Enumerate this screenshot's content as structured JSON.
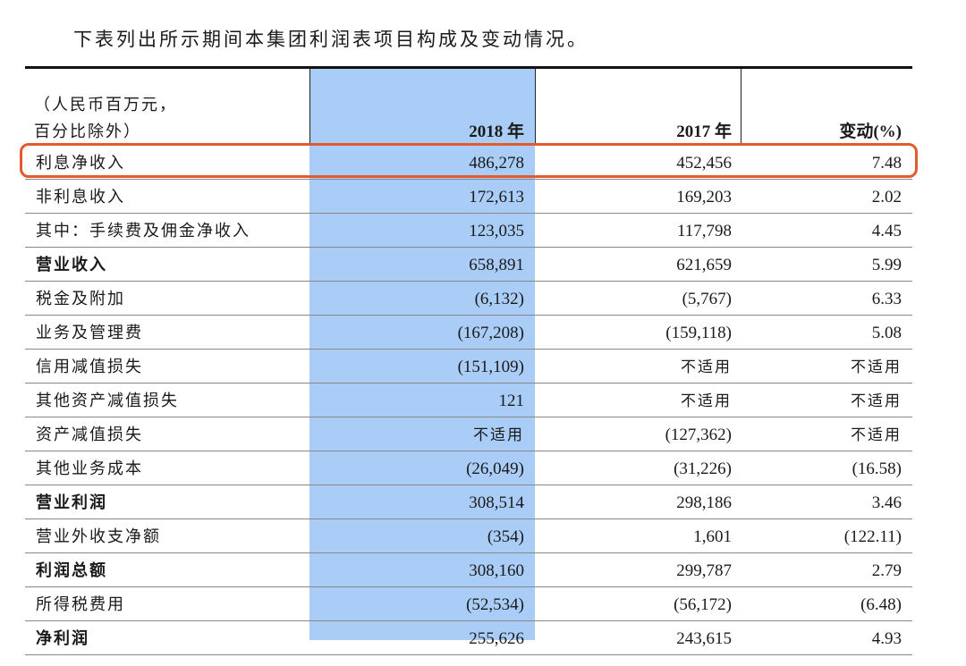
{
  "intro": "下表列出所示期间本集团利润表项目构成及变动情况。",
  "header": {
    "unit_line1": "（人民币百万元，",
    "unit_line2": "百分比除外）",
    "col_2018": "2018 年",
    "col_2017": "2017 年",
    "col_change": "变动(%)"
  },
  "colors": {
    "shade": "#a9cdf6",
    "highlight": "#e25b2e"
  },
  "rows": [
    {
      "label": "利息净收入",
      "bold": false,
      "v2018": "486,278",
      "v2017": "452,456",
      "change": "7.48"
    },
    {
      "label": "非利息收入",
      "bold": false,
      "v2018": "172,613",
      "v2017": "169,203",
      "change": "2.02"
    },
    {
      "label": "其中：手续费及佣金净收入",
      "bold": false,
      "v2018": "123,035",
      "v2017": "117,798",
      "change": "4.45"
    },
    {
      "label": "营业收入",
      "bold": true,
      "v2018": "658,891",
      "v2017": "621,659",
      "change": "5.99"
    },
    {
      "label": "税金及附加",
      "bold": false,
      "v2018": "(6,132)",
      "v2017": "(5,767)",
      "change": "6.33"
    },
    {
      "label": "业务及管理费",
      "bold": false,
      "v2018": "(167,208)",
      "v2017": "(159,118)",
      "change": "5.08"
    },
    {
      "label": "信用减值损失",
      "bold": false,
      "v2018": "(151,109)",
      "v2017": "不适用",
      "change": "不适用"
    },
    {
      "label": "其他资产减值损失",
      "bold": false,
      "v2018": "121",
      "v2017": "不适用",
      "change": "不适用"
    },
    {
      "label": "资产减值损失",
      "bold": false,
      "v2018": "不适用",
      "v2017": "(127,362)",
      "change": "不适用"
    },
    {
      "label": "其他业务成本",
      "bold": false,
      "v2018": "(26,049)",
      "v2017": "(31,226)",
      "change": "(16.58)"
    },
    {
      "label": "营业利润",
      "bold": true,
      "v2018": "308,514",
      "v2017": "298,186",
      "change": "3.46"
    },
    {
      "label": "营业外收支净额",
      "bold": false,
      "v2018": "(354)",
      "v2017": "1,601",
      "change": "(122.11)"
    },
    {
      "label": "利润总额",
      "bold": true,
      "v2018": "308,160",
      "v2017": "299,787",
      "change": "2.79"
    },
    {
      "label": "所得税费用",
      "bold": false,
      "v2018": "(52,534)",
      "v2017": "(56,172)",
      "change": "(6.48)"
    },
    {
      "label": "净利润",
      "bold": true,
      "v2018": "255,626",
      "v2017": "243,615",
      "change": "4.93"
    }
  ]
}
